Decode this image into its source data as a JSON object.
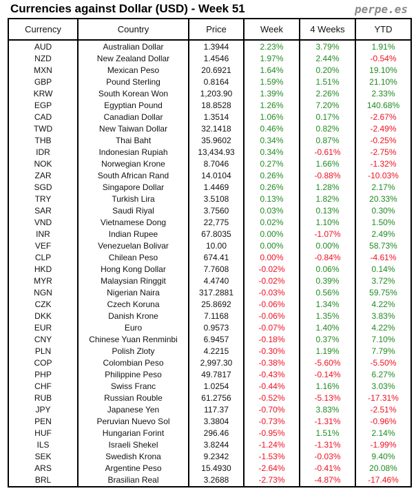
{
  "header": {
    "title": "Currencies against Dollar (USD) - Week 51",
    "brand": "perpe.es"
  },
  "colors": {
    "positive": "#1f8a1f",
    "negative": "#f01020"
  },
  "columns": [
    "Currency",
    "Country",
    "Price",
    "Week",
    "4 Weeks",
    "YTD"
  ],
  "rows": [
    [
      "AUD",
      "Australian Dollar",
      "1.3944",
      "2.23%",
      "3.79%",
      "1.91%"
    ],
    [
      "NZD",
      "New Zealand Dollar",
      "1.4546",
      "1.97%",
      "2.44%",
      "-0.54%"
    ],
    [
      "MXN",
      "Mexican Peso",
      "20.6921",
      "1.64%",
      "0.20%",
      "19.10%"
    ],
    [
      "GBP",
      "Pound Sterling",
      "0.8164",
      "1.59%",
      "1.51%",
      "21.10%"
    ],
    [
      "KRW",
      "South Korean Won",
      "1,203.90",
      "1.39%",
      "2.26%",
      "2.33%"
    ],
    [
      "EGP",
      "Egyptian Pound",
      "18.8528",
      "1.26%",
      "7.20%",
      "140.68%"
    ],
    [
      "CAD",
      "Canadian Dollar",
      "1.3514",
      "1.06%",
      "0.17%",
      "-2.67%"
    ],
    [
      "TWD",
      "New Taiwan Dollar",
      "32.1418",
      "0.46%",
      "0.82%",
      "-2.49%"
    ],
    [
      "THB",
      "Thai Baht",
      "35.9602",
      "0.34%",
      "0.87%",
      "-0.25%"
    ],
    [
      "IDR",
      "Indonesian Rupiah",
      "13,434.93",
      "0.34%",
      "-0.61%",
      "-2.75%"
    ],
    [
      "NOK",
      "Norwegian Krone",
      "8.7046",
      "0.27%",
      "1.66%",
      "-1.32%"
    ],
    [
      "ZAR",
      "South African Rand",
      "14.0104",
      "0.26%",
      "-0.88%",
      "-10.03%"
    ],
    [
      "SGD",
      "Singapore Dollar",
      "1.4469",
      "0.26%",
      "1.28%",
      "2.17%"
    ],
    [
      "TRY",
      "Turkish Lira",
      "3.5108",
      "0.13%",
      "1.82%",
      "20.33%"
    ],
    [
      "SAR",
      "Saudi Riyal",
      "3.7560",
      "0.03%",
      "0.13%",
      "0.30%"
    ],
    [
      "VND",
      "Vietnamese Dong",
      "22,775",
      "0.02%",
      "1.10%",
      "1.50%"
    ],
    [
      "INR",
      "Indian Rupee",
      "67.8035",
      "0.00%",
      "-1.07%",
      "2.49%"
    ],
    [
      "VEF",
      "Venezuelan Bolivar",
      "10.00",
      "0.00%",
      "0.00%",
      "58.73%"
    ],
    [
      "CLP",
      "Chilean Peso",
      "674.41",
      "0.00%",
      "-0.84%",
      "-4.61%"
    ],
    [
      "HKD",
      "Hong Kong Dollar",
      "7.7608",
      "-0.02%",
      "0.06%",
      "0.14%"
    ],
    [
      "MYR",
      "Malaysian Ringgit",
      "4.4740",
      "-0.02%",
      "0.39%",
      "3.72%"
    ],
    [
      "NGN",
      "Nigerian Naira",
      "317.2881",
      "-0.03%",
      "0.56%",
      "59.75%"
    ],
    [
      "CZK",
      "Czech Koruna",
      "25.8692",
      "-0.06%",
      "1.34%",
      "4.22%"
    ],
    [
      "DKK",
      "Danish Krone",
      "7.1168",
      "-0.06%",
      "1.35%",
      "3.83%"
    ],
    [
      "EUR",
      "Euro",
      "0.9573",
      "-0.07%",
      "1.40%",
      "4.22%"
    ],
    [
      "CNY",
      "Chinese Yuan Renminbi",
      "6.9457",
      "-0.18%",
      "0.37%",
      "7.10%"
    ],
    [
      "PLN",
      "Polish Zloty",
      "4.2215",
      "-0.30%",
      "1.19%",
      "7.79%"
    ],
    [
      "COP",
      "Colombian Peso",
      "2,997.30",
      "-0.38%",
      "-5.60%",
      "-5.50%"
    ],
    [
      "PHP",
      "Philippine Peso",
      "49.7817",
      "-0.43%",
      "-0.14%",
      "6.27%"
    ],
    [
      "CHF",
      "Swiss Franc",
      "1.0254",
      "-0.44%",
      "1.16%",
      "3.03%"
    ],
    [
      "RUB",
      "Russian Rouble",
      "61.2756",
      "-0.52%",
      "-5.13%",
      "-17.31%"
    ],
    [
      "JPY",
      "Japanese Yen",
      "117.37",
      "-0.70%",
      "3.83%",
      "-2.51%"
    ],
    [
      "PEN",
      "Peruvian Nuevo Sol",
      "3.3804",
      "-0.73%",
      "-1.31%",
      "-0.96%"
    ],
    [
      "HUF",
      "Hungarian Forint",
      "296.46",
      "-0.95%",
      "1.51%",
      "2.14%"
    ],
    [
      "ILS",
      "Israeli Shekel",
      "3.8244",
      "-1.24%",
      "-1.31%",
      "-1.99%"
    ],
    [
      "SEK",
      "Swedish Krona",
      "9.2342",
      "-1.53%",
      "-0.03%",
      "9.40%"
    ],
    [
      "ARS",
      "Argentine Peso",
      "15.4930",
      "-2.64%",
      "-0.41%",
      "20.08%"
    ],
    [
      "BRL",
      "Brasilian Real",
      "3.2688",
      "-2.73%",
      "-4.87%",
      "-17.46%"
    ]
  ],
  "negative_overrides": [
    {
      "row": 18,
      "col": 3
    }
  ]
}
